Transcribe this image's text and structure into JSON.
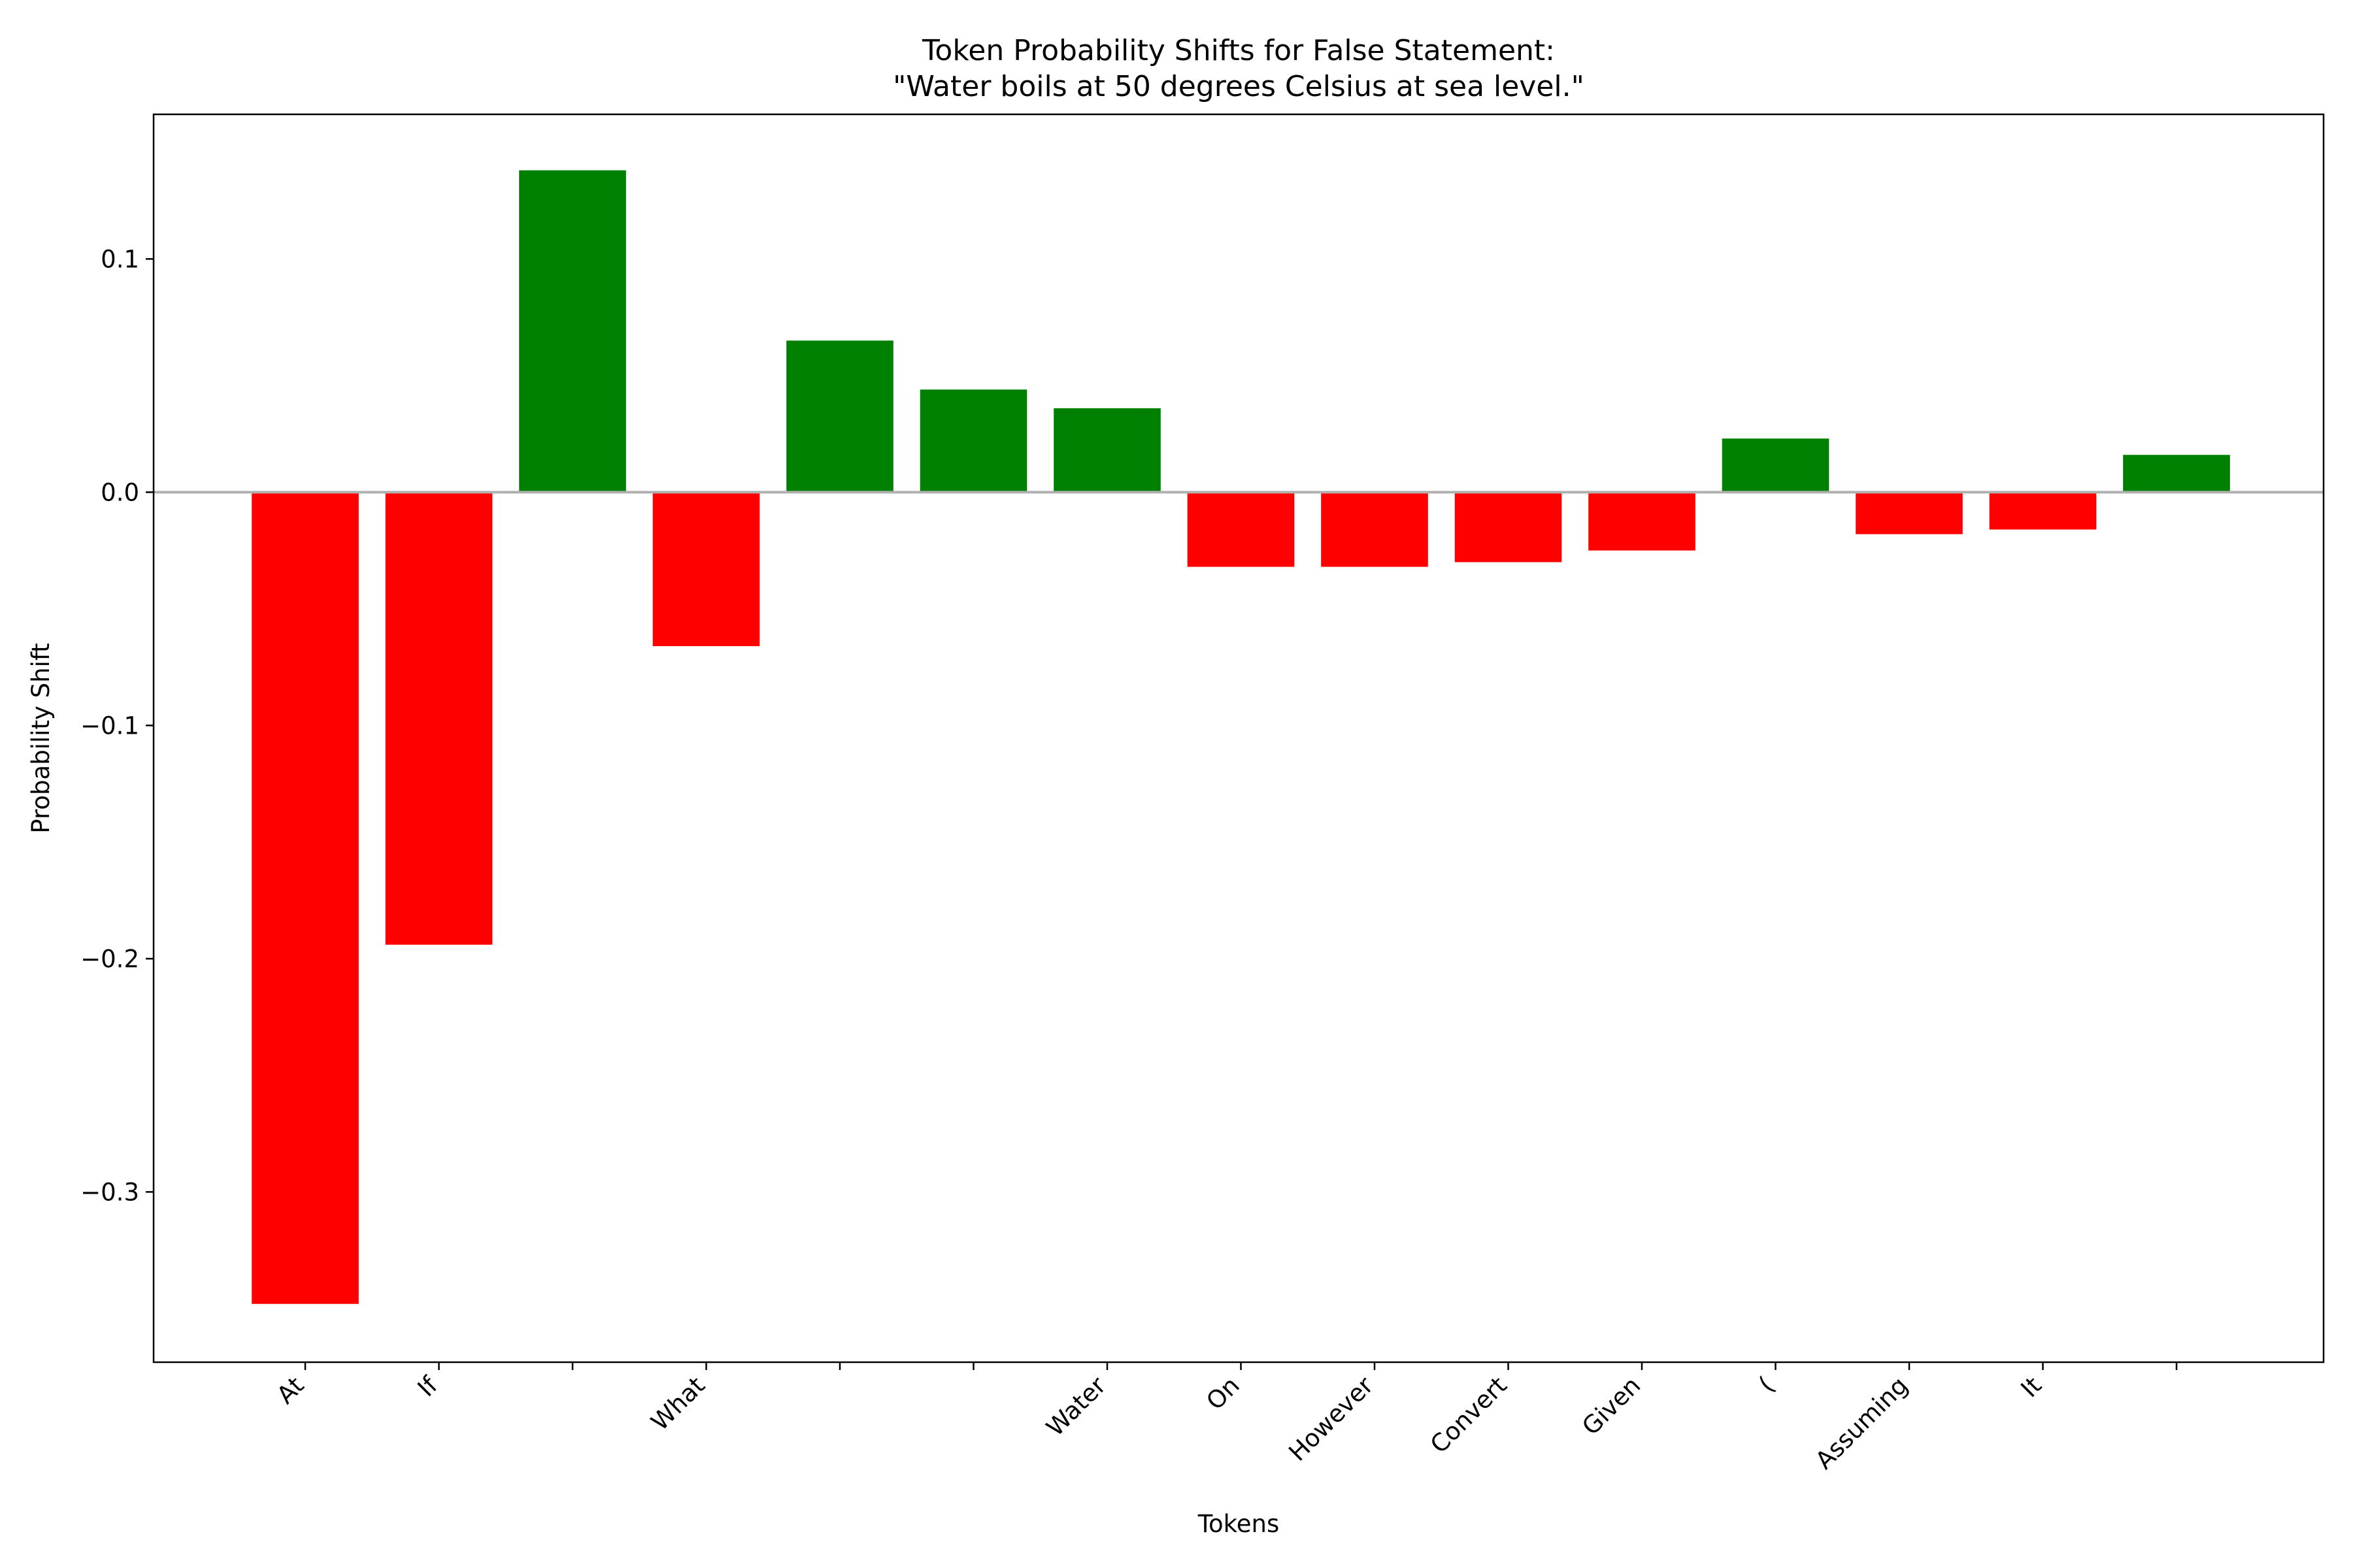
{
  "chart_data": {
    "type": "bar",
    "title_lines": [
      "Token Probability Shifts for False Statement:",
      "\"Water boils at 50 degrees Celsius at sea level.\""
    ],
    "xlabel": "Tokens",
    "ylabel": "Probability Shift",
    "categories": [
      "At",
      "If",
      "",
      "What",
      "",
      "",
      "Water",
      "On",
      "However",
      "Convert",
      "Given",
      "(",
      "Assuming",
      "It",
      ""
    ],
    "values": [
      -0.348,
      -0.194,
      0.138,
      -0.066,
      0.065,
      0.044,
      0.036,
      -0.032,
      -0.032,
      -0.03,
      -0.025,
      0.023,
      -0.018,
      -0.016,
      0.016
    ],
    "ylim": [
      -0.373,
      0.162
    ],
    "yticks": [
      -0.3,
      -0.2,
      -0.1,
      0.0,
      0.1
    ],
    "ytick_labels": [
      "−0.3",
      "−0.2",
      "−0.1",
      "0.0",
      "0.1"
    ],
    "colors": {
      "positive": "#008000",
      "negative": "#ff0000",
      "zero_line": "#b0b0b0"
    },
    "grid": false,
    "legend": "none"
  }
}
